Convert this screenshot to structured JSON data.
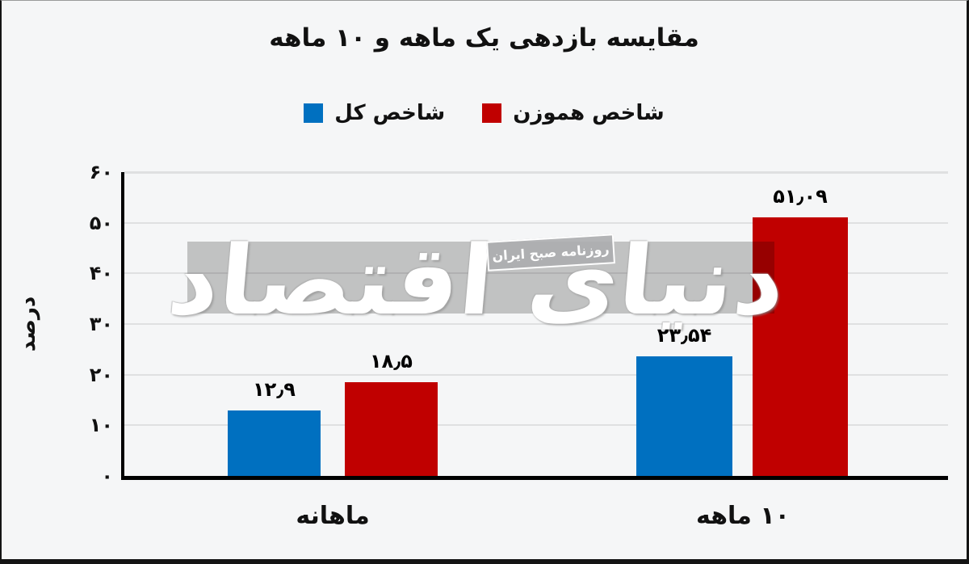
{
  "chart_data": {
    "type": "bar",
    "title": "مقایسه بازدهی یک ماهه و ۱۰ ماهه",
    "ylabel": "درصد",
    "xlabel": "",
    "categories": [
      "ماهانه",
      "۱۰ ماهه"
    ],
    "series": [
      {
        "name": "شاخص کل",
        "color": "#0070c0",
        "values": [
          12.9,
          23.54
        ],
        "value_labels_fa": [
          "۱۲٫۹",
          "۲۳٫۵۴"
        ]
      },
      {
        "name": "شاخص هموزن",
        "color": "#c00000",
        "values": [
          18.5,
          51.09
        ],
        "value_labels_fa": [
          "۱۸٫۵",
          "۵۱٫۰۹"
        ]
      }
    ],
    "ylim": [
      0,
      60
    ],
    "yticks": [
      0,
      10,
      20,
      30,
      40,
      50,
      60
    ],
    "ytick_labels_fa": [
      "۰",
      "۱۰",
      "۲۰",
      "۳۰",
      "۴۰",
      "۵۰",
      "۶۰"
    ],
    "grid": true,
    "legend_position": "top-center"
  },
  "watermark": {
    "logo_text": "دنیای اقتصاد",
    "tagline": "روزنامه صبح ایران"
  }
}
